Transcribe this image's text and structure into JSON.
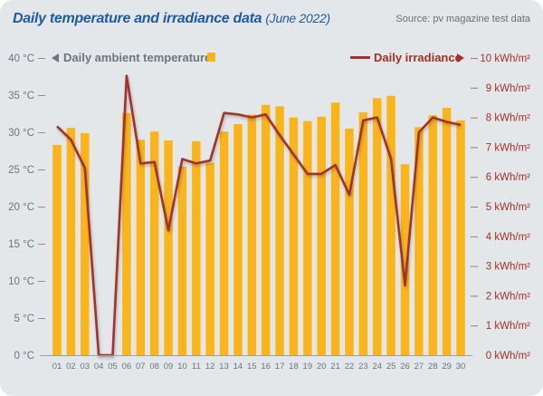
{
  "header": {
    "title": "Daily temperature and irradiance data",
    "subtitle": "(June 2022)",
    "source": "Source: pv magazine test data"
  },
  "colors": {
    "bar": "#fbb519",
    "line": "#a3302a",
    "background": "#e3e7ea",
    "axis_text": "#6f757b",
    "title": "#1f5aa5"
  },
  "chart_data": {
    "type": "bar+line",
    "title": "Daily temperature and irradiance data (June 2022)",
    "categories": [
      "01",
      "02",
      "03",
      "04",
      "05",
      "06",
      "07",
      "08",
      "09",
      "10",
      "11",
      "12",
      "13",
      "14",
      "15",
      "16",
      "17",
      "18",
      "19",
      "20",
      "21",
      "22",
      "23",
      "24",
      "25",
      "26",
      "27",
      "28",
      "29",
      "30"
    ],
    "series": [
      {
        "name": "Daily ambient temperature",
        "type": "bar",
        "axis": "left",
        "unit": "°C",
        "values": [
          28.3,
          30.6,
          29.9,
          0,
          0,
          32.6,
          29.0,
          30.1,
          28.9,
          25.4,
          28.8,
          25.9,
          30.1,
          31.1,
          32.4,
          33.7,
          33.5,
          32.0,
          31.5,
          32.1,
          34.0,
          30.5,
          32.7,
          34.6,
          34.9,
          25.7,
          30.7,
          32.3,
          33.3,
          31.6
        ]
      },
      {
        "name": "Daily irradiance",
        "type": "line",
        "axis": "right",
        "unit": "kWh/m²",
        "values": [
          7.7,
          7.25,
          6.3,
          0,
          0,
          9.4,
          6.45,
          6.5,
          4.2,
          6.6,
          6.45,
          6.55,
          8.15,
          8.1,
          8.0,
          8.1,
          7.4,
          6.75,
          6.1,
          6.1,
          6.4,
          5.4,
          7.9,
          8.0,
          6.6,
          2.35,
          7.5,
          8.0,
          7.85,
          7.75
        ]
      }
    ],
    "left_axis": {
      "ylim": [
        0,
        40
      ],
      "ticks": [
        "0 °C",
        "5 °C",
        "10 °C",
        "15 °C",
        "20 °C",
        "25 °C",
        "30 °C",
        "35 °C",
        "40 °C"
      ]
    },
    "right_axis": {
      "ylim": [
        0,
        10
      ],
      "ticks": [
        "0 kWh/m²",
        "1 kWh/m²",
        "2 kWh/m²",
        "3 kWh/m²",
        "4 kWh/m²",
        "5 kWh/m²",
        "6 kWh/m²",
        "7 kWh/m²",
        "8 kWh/m²",
        "9 kWh/m²",
        "10 kWh/m²"
      ]
    },
    "legend": {
      "left_label": "Daily ambient temperature",
      "right_label": "Daily irradiance",
      "placement": "top"
    },
    "grid": false
  }
}
